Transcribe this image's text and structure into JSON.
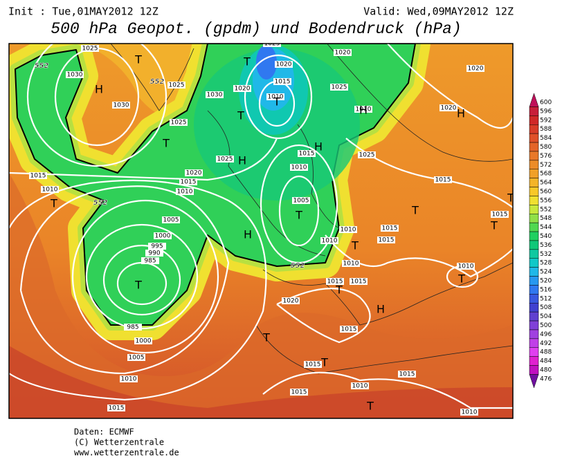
{
  "header": {
    "init": "Init : Tue,01MAY2012 12Z",
    "valid": "Valid: Wed,09MAY2012 12Z",
    "title": "500 hPa Geopot. (gpdm) und Bodendruck (hPa)"
  },
  "map": {
    "isobar_labels": [
      "1025",
      "1030",
      "1030",
      "1025",
      "1025",
      "1030",
      "1020",
      "1025",
      "1020",
      "1015",
      "1010",
      "1015",
      "1010",
      "1005",
      "1000",
      "995",
      "990",
      "985",
      "985",
      "1000",
      "1005",
      "1010",
      "1015",
      "1020",
      "1015",
      "1010",
      "1020",
      "1025",
      "1020",
      "1020",
      "1010",
      "1015",
      "1010",
      "1005",
      "1025",
      "1015",
      "1015",
      "1010",
      "1010",
      "1015",
      "1015",
      "1010",
      "1015",
      "1015",
      "1020",
      "1010",
      "1015",
      "1015",
      "1015",
      "1015",
      "1010",
      "1010",
      "1025"
    ],
    "contour_labels": [
      "552",
      "552",
      "552",
      "552"
    ],
    "pressure_centers": [
      "T",
      "T",
      "T",
      "T",
      "T",
      "T",
      "T",
      "T",
      "T",
      "T",
      "T",
      "T",
      "T",
      "T",
      "T",
      "T",
      "T",
      "H",
      "H",
      "H",
      "H",
      "H",
      "H",
      "H"
    ]
  },
  "colorbar": {
    "ticks": [
      600,
      596,
      592,
      588,
      584,
      580,
      576,
      572,
      568,
      564,
      560,
      556,
      552,
      548,
      544,
      540,
      536,
      532,
      528,
      524,
      520,
      516,
      512,
      508,
      504,
      500,
      496,
      492,
      488,
      484,
      480,
      476
    ],
    "colors": [
      "#c0105a",
      "#c81e3a",
      "#d02828",
      "#d83c28",
      "#e05028",
      "#e46428",
      "#e87828",
      "#ec8c28",
      "#f0a028",
      "#f4b428",
      "#f8c828",
      "#f0e030",
      "#c8e83c",
      "#90e048",
      "#50d850",
      "#20d060",
      "#10c878",
      "#10c8a0",
      "#10c8c8",
      "#20b8e8",
      "#2898f0",
      "#3078f0",
      "#3858e0",
      "#4040d0",
      "#6040d0",
      "#8040d8",
      "#a040e0",
      "#c040e8",
      "#e040f0",
      "#e020d0",
      "#c010c0",
      "#7010a0"
    ]
  },
  "footer": {
    "source": "Daten: ECMWF",
    "copyright": "(C) Wetterzentrale",
    "url": "www.wetterzentrale.de"
  }
}
